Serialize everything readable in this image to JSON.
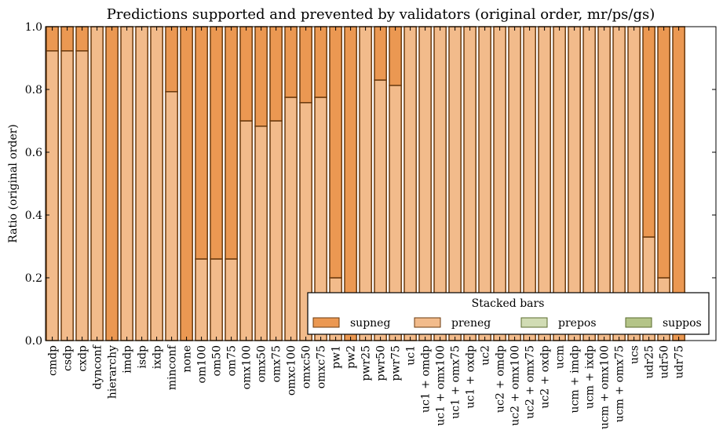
{
  "chart_data": {
    "type": "bar",
    "stacked": true,
    "title": "Predictions supported and prevented by validators (original order, mr/ps/gs)",
    "xlabel": "",
    "ylabel": "Ratio (original order)",
    "ylim": [
      0.0,
      1.0
    ],
    "yticks": [
      "0.0",
      "0.2",
      "0.4",
      "0.6",
      "0.8",
      "1.0"
    ],
    "grid": false,
    "categories": [
      "cmdp",
      "csdp",
      "cxdp",
      "dynconf",
      "hierarchy",
      "imdp",
      "isdp",
      "ixdp",
      "minconf",
      "none",
      "om100",
      "om50",
      "om75",
      "omx100",
      "omx50",
      "omx75",
      "omxc100",
      "omxc50",
      "omxc75",
      "pw1",
      "pw2",
      "pwr25",
      "pwr50",
      "pwr75",
      "uc1",
      "uc1 + omdp",
      "uc1 + omx100",
      "uc1 + omx75",
      "uc1 + oxdp",
      "uc2",
      "uc2 + omdp",
      "uc2 + omx100",
      "uc2 + omx75",
      "uc2 + oxdp",
      "ucm",
      "ucm + imdp",
      "ucm + ixdp",
      "ucm + omx100",
      "ucm + omx75",
      "ucs",
      "udr25",
      "udr50",
      "udr75"
    ],
    "series": [
      {
        "name": "preneg",
        "color": "#f2bb8b",
        "values": [
          0.923,
          0.923,
          0.923,
          1.0,
          0.0,
          1.0,
          1.0,
          1.0,
          0.793,
          0.0,
          0.26,
          0.26,
          0.26,
          0.7,
          0.683,
          0.7,
          0.775,
          0.758,
          0.775,
          0.2,
          0.0,
          1.0,
          0.83,
          0.813,
          1.0,
          1.0,
          1.0,
          1.0,
          1.0,
          1.0,
          1.0,
          1.0,
          1.0,
          1.0,
          1.0,
          1.0,
          1.0,
          1.0,
          1.0,
          1.0,
          0.33,
          0.2,
          0.0
        ]
      },
      {
        "name": "supneg",
        "color": "#eb9852",
        "values": [
          0.077,
          0.077,
          0.077,
          0.0,
          1.0,
          0.0,
          0.0,
          0.0,
          0.207,
          1.0,
          0.74,
          0.74,
          0.74,
          0.3,
          0.317,
          0.3,
          0.225,
          0.242,
          0.225,
          0.8,
          1.0,
          0.0,
          0.17,
          0.187,
          0.0,
          0.0,
          0.0,
          0.0,
          0.0,
          0.0,
          0.0,
          0.0,
          0.0,
          0.0,
          0.0,
          0.0,
          0.0,
          0.0,
          0.0,
          0.0,
          0.67,
          0.8,
          1.0
        ]
      },
      {
        "name": "prepos",
        "color": "#d1dcb4",
        "values": [
          0,
          0,
          0,
          0,
          0,
          0,
          0,
          0,
          0,
          0,
          0,
          0,
          0,
          0,
          0,
          0,
          0,
          0,
          0,
          0,
          0,
          0,
          0,
          0,
          0,
          0,
          0,
          0,
          0,
          0,
          0,
          0,
          0,
          0,
          0,
          0,
          0,
          0,
          0,
          0,
          0,
          0,
          0
        ]
      },
      {
        "name": "suppos",
        "color": "#b4c488",
        "values": [
          0,
          0,
          0,
          0,
          0,
          0,
          0,
          0,
          0,
          0,
          0,
          0,
          0,
          0,
          0,
          0,
          0,
          0,
          0,
          0,
          0,
          0,
          0,
          0,
          0,
          0,
          0,
          0,
          0,
          0,
          0,
          0,
          0,
          0,
          0,
          0,
          0,
          0,
          0,
          0,
          0,
          0,
          0
        ]
      }
    ],
    "legend": {
      "title": "Stacked bars",
      "placement": "lower-right",
      "entries": [
        {
          "label": "supneg",
          "color": "#eb9852"
        },
        {
          "label": "preneg",
          "color": "#f2bb8b"
        },
        {
          "label": "prepos",
          "color": "#d1dcb4"
        },
        {
          "label": "suppos",
          "color": "#b4c488"
        }
      ]
    },
    "edge_color": "#6b3a0e"
  }
}
